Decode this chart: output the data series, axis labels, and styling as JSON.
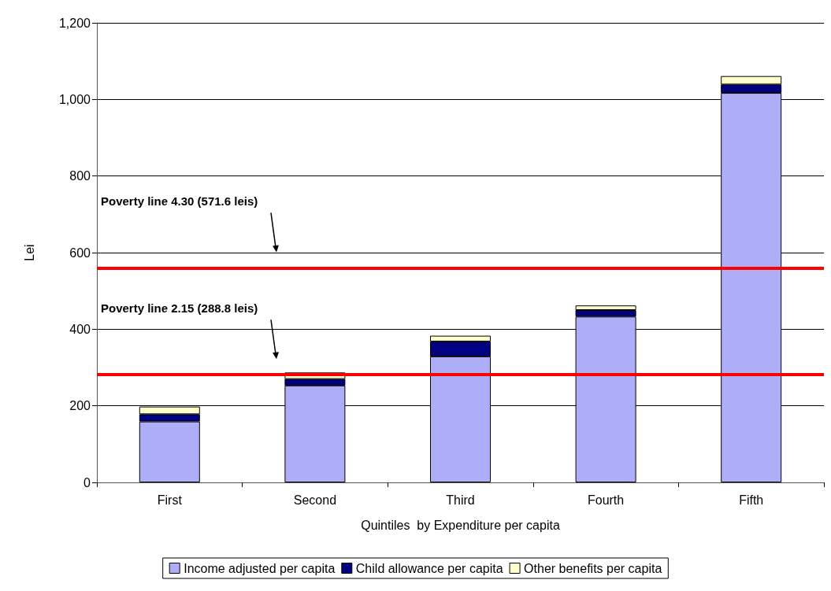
{
  "chart_data": {
    "type": "bar",
    "stacked": true,
    "xlabel": "Quintiles  by Expenditure per capita",
    "ylabel": "Lei",
    "categories": [
      "First",
      "Second",
      "Third",
      "Fourth",
      "Fifth"
    ],
    "series": [
      {
        "name": "Income adjusted per capita",
        "color": "#aeaef8",
        "values": [
          159,
          253,
          329,
          433,
          1017
        ]
      },
      {
        "name": "Child allowance per capita",
        "color": "#000080",
        "values": [
          19,
          17,
          39,
          17,
          22
        ]
      },
      {
        "name": "Other benefits per capita",
        "color": "#ffffcc",
        "values": [
          20,
          17,
          15,
          12,
          22
        ]
      }
    ],
    "ylim": [
      0,
      1200
    ],
    "yticks": [
      0,
      {
        "value": 200,
        "label": "200"
      },
      {
        "value": 400,
        "label": "400"
      },
      {
        "value": 600,
        "label": "600"
      },
      {
        "value": 800,
        "label": "800"
      },
      {
        "value": 1000,
        "label": "1,000"
      },
      {
        "value": 1200,
        "label": "1,200"
      }
    ],
    "ref_lines": [
      {
        "axis": "y",
        "value": 560,
        "color": "#ff0000"
      },
      {
        "axis": "y",
        "value": 281,
        "color": "#ff0000"
      }
    ],
    "annotations": [
      "Poverty line 4.30 (571.6 leis)",
      "Poverty line 2.15 (288.8 leis)"
    ],
    "grid": "y",
    "legend": "bottom"
  }
}
